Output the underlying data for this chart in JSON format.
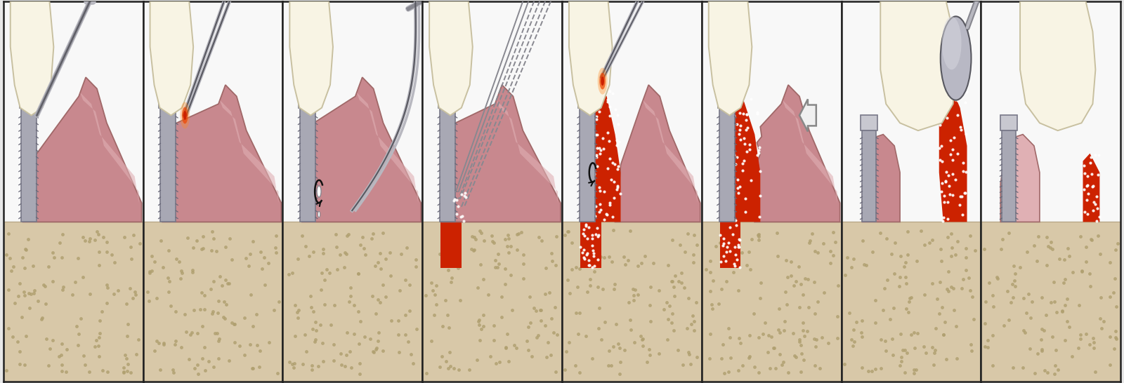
{
  "n_panels": 8,
  "fig_width": 16.0,
  "fig_height": 5.46,
  "bg_color": "#e8e8e8",
  "border_color": "#222222",
  "colors": {
    "tooth_white": "#f8f4e4",
    "tooth_cream": "#ede8d0",
    "tooth_outline": "#c8c0a0",
    "gum_pink": "#c8888e",
    "gum_light": "#daa0a4",
    "gum_lighter": "#e0b0b4",
    "gum_dark_edge": "#a06868",
    "gum_inner": "#b87878",
    "implant_top": "#c8c8d0",
    "implant_mid": "#a8a8b4",
    "implant_dark": "#787888",
    "implant_thread": "#686878",
    "bone_tan": "#d8c8a8",
    "bone_mid": "#c8b898",
    "bone_dark": "#b8a888",
    "bone_dot": "#b0a070",
    "red_bright": "#cc2200",
    "red_dot_fill": "#dd3311",
    "laser_core": "#cc2200",
    "laser_mid": "#ee4400",
    "laser_glow": "#ff8822",
    "probe_gray": "#888890",
    "probe_light": "#b8b8c0",
    "probe_dark": "#585860",
    "arrow_white": "#f0f0f0",
    "arrow_edge": "#888888",
    "ball_gray": "#b8b8c4",
    "ball_light": "#d8d8e0",
    "black": "#111111",
    "white": "#ffffff",
    "panel_bg": "#f8f8f8"
  }
}
